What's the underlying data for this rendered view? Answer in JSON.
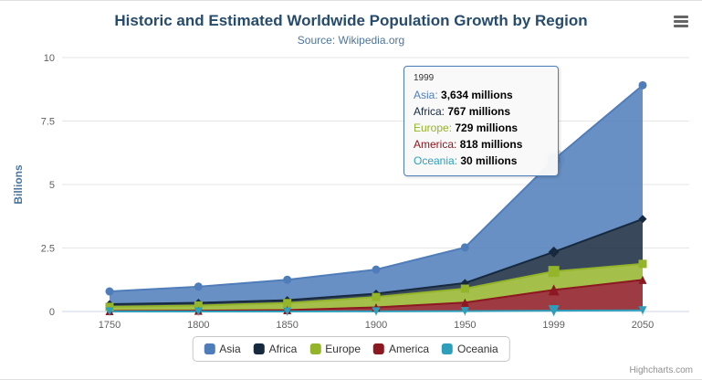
{
  "chart_data": {
    "type": "area",
    "stacking": "normal",
    "title": "Historic and Estimated Worldwide Population Growth by Region",
    "subtitle": "Source: Wikipedia.org",
    "categories": [
      "1750",
      "1800",
      "1850",
      "1900",
      "1950",
      "1999",
      "2050"
    ],
    "series": [
      {
        "name": "Asia",
        "color": "#4f7dba",
        "marker": "circle",
        "data_millions": [
          502,
          635,
          809,
          947,
          1402,
          3634,
          5268
        ]
      },
      {
        "name": "Africa",
        "color": "#16293e",
        "marker": "diamond",
        "data_millions": [
          106,
          107,
          111,
          133,
          221,
          767,
          1766
        ]
      },
      {
        "name": "Europe",
        "color": "#94b42a",
        "marker": "square",
        "data_millions": [
          163,
          203,
          276,
          408,
          547,
          729,
          628
        ]
      },
      {
        "name": "America",
        "color": "#8c1821",
        "marker": "triangle",
        "data_millions": [
          18,
          31,
          54,
          156,
          339,
          818,
          1201
        ]
      },
      {
        "name": "Oceania",
        "color": "#2e9fbb",
        "marker": "triangle-down",
        "data_millions": [
          2,
          2,
          2,
          6,
          13,
          30,
          46
        ]
      }
    ],
    "xlabel": "",
    "ylabel": "Billions",
    "yticks": [
      0,
      2.5,
      5,
      7.5,
      10
    ],
    "ylim": [
      0,
      10
    ],
    "unit": "millions",
    "grid": true,
    "legend_position": "bottom",
    "fill_opacity": 0.85
  },
  "hover": {
    "category": "1999",
    "series": "Asia"
  },
  "tooltip": {
    "header": "1999",
    "rows": [
      {
        "name": "Asia",
        "value": "3,634 millions"
      },
      {
        "name": "Africa",
        "value": "767 millions"
      },
      {
        "name": "Europe",
        "value": "729 millions"
      },
      {
        "name": "America",
        "value": "818 millions"
      },
      {
        "name": "Oceania",
        "value": "30 millions"
      }
    ]
  },
  "legend": {
    "items": [
      "Asia",
      "Africa",
      "Europe",
      "America",
      "Oceania"
    ]
  },
  "toolbar": {
    "export_icon": "hamburger-menu"
  },
  "credits": {
    "label": "Highcharts.com"
  }
}
